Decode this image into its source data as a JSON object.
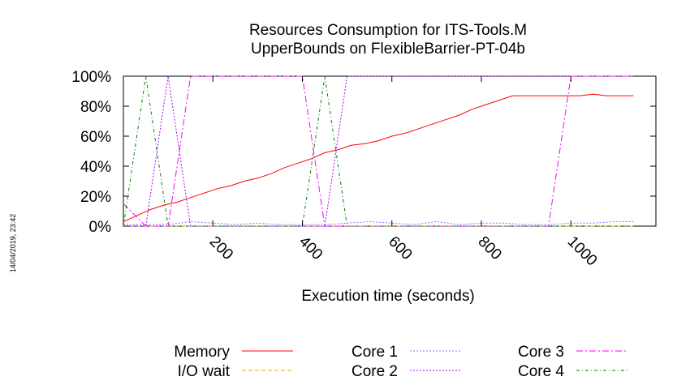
{
  "chart_data": {
    "type": "line",
    "title": [
      "Resources Consumption for ITS-Tools.M",
      "UpperBounds on FlexibleBarrier-PT-04b"
    ],
    "xlabel": "Execution time (seconds)",
    "ylabel": "",
    "xlim": [
      0,
      1190
    ],
    "ylim": [
      0,
      100
    ],
    "xticks": [
      200,
      400,
      600,
      800,
      1000
    ],
    "xtick_labels": [
      "200",
      "400",
      "600",
      "800",
      "1000"
    ],
    "yticks": [
      0,
      20,
      40,
      60,
      80,
      100
    ],
    "ytick_labels": [
      "0%",
      "20%",
      "40%",
      "60%",
      "80%",
      "100%"
    ],
    "grid": false,
    "legend_position": "bottom",
    "timestamp": "14/04/2019, 23:42",
    "series": [
      {
        "name": "Memory",
        "color": "#ff0000",
        "dash": "solid",
        "x": [
          0,
          30,
          60,
          90,
          120,
          150,
          180,
          210,
          240,
          270,
          300,
          330,
          360,
          390,
          420,
          450,
          480,
          510,
          540,
          570,
          600,
          630,
          660,
          690,
          720,
          750,
          780,
          810,
          840,
          870,
          900,
          930,
          960,
          990,
          1020,
          1050,
          1080,
          1110,
          1140
        ],
        "y": [
          3,
          7,
          11,
          14,
          16,
          19,
          22,
          25,
          27,
          30,
          32,
          35,
          39,
          42,
          45,
          49,
          51,
          54,
          55,
          57,
          60,
          62,
          65,
          68,
          71,
          74,
          78,
          81,
          84,
          87,
          87,
          87,
          87,
          87,
          87,
          88,
          87,
          87,
          87
        ]
      },
      {
        "name": "I/O wait",
        "color": "#ffa500",
        "dash": "dashed",
        "x": [
          0,
          1140
        ],
        "y": [
          0,
          0
        ]
      },
      {
        "name": "Core 1",
        "color": "#7878ff",
        "dash": "dotted",
        "x": [
          0,
          50,
          100,
          150,
          200,
          250,
          300,
          350,
          400,
          450,
          500,
          550,
          600,
          650,
          700,
          750,
          800,
          850,
          900,
          950,
          1000,
          1050,
          1100,
          1140
        ],
        "y": [
          1,
          1,
          1,
          3,
          2,
          1,
          2,
          1,
          1,
          1,
          2,
          3,
          2,
          1,
          3,
          1,
          2,
          2,
          1,
          1,
          2,
          2,
          3,
          3
        ]
      },
      {
        "name": "Core 2",
        "color": "#b400ff",
        "dash": "dotted",
        "x": [
          0,
          50,
          100,
          150,
          200,
          250,
          300,
          350,
          400,
          450,
          500,
          550,
          600,
          650,
          700,
          750,
          800,
          850,
          900,
          950,
          1000,
          1050,
          1100,
          1140
        ],
        "y": [
          0,
          0,
          100,
          0,
          0,
          0,
          0,
          0,
          0,
          0,
          100,
          100,
          100,
          100,
          100,
          100,
          100,
          100,
          100,
          100,
          100,
          100,
          100,
          100
        ]
      },
      {
        "name": "Core 3",
        "color": "#ff00ff",
        "dash": "dashdot",
        "x": [
          0,
          50,
          100,
          150,
          200,
          250,
          300,
          350,
          400,
          450,
          500,
          550,
          600,
          650,
          700,
          750,
          800,
          850,
          900,
          950,
          1000,
          1050,
          1100,
          1140
        ],
        "y": [
          15,
          0,
          0,
          100,
          100,
          100,
          100,
          100,
          100,
          0,
          0,
          0,
          0,
          0,
          0,
          0,
          0,
          0,
          0,
          0,
          100,
          100,
          100,
          100
        ]
      },
      {
        "name": "Core 4",
        "color": "#008000",
        "dash": "dashdotdot",
        "x": [
          0,
          50,
          100,
          150,
          200,
          250,
          300,
          350,
          400,
          450,
          500,
          550,
          600,
          650,
          700,
          750,
          800,
          850,
          900,
          950,
          1000,
          1050,
          1100,
          1140
        ],
        "y": [
          0,
          100,
          0,
          0,
          0,
          0,
          0,
          0,
          0,
          100,
          0,
          0,
          0,
          0,
          0,
          0,
          0,
          0,
          0,
          0,
          0,
          0,
          0,
          0
        ]
      }
    ]
  }
}
